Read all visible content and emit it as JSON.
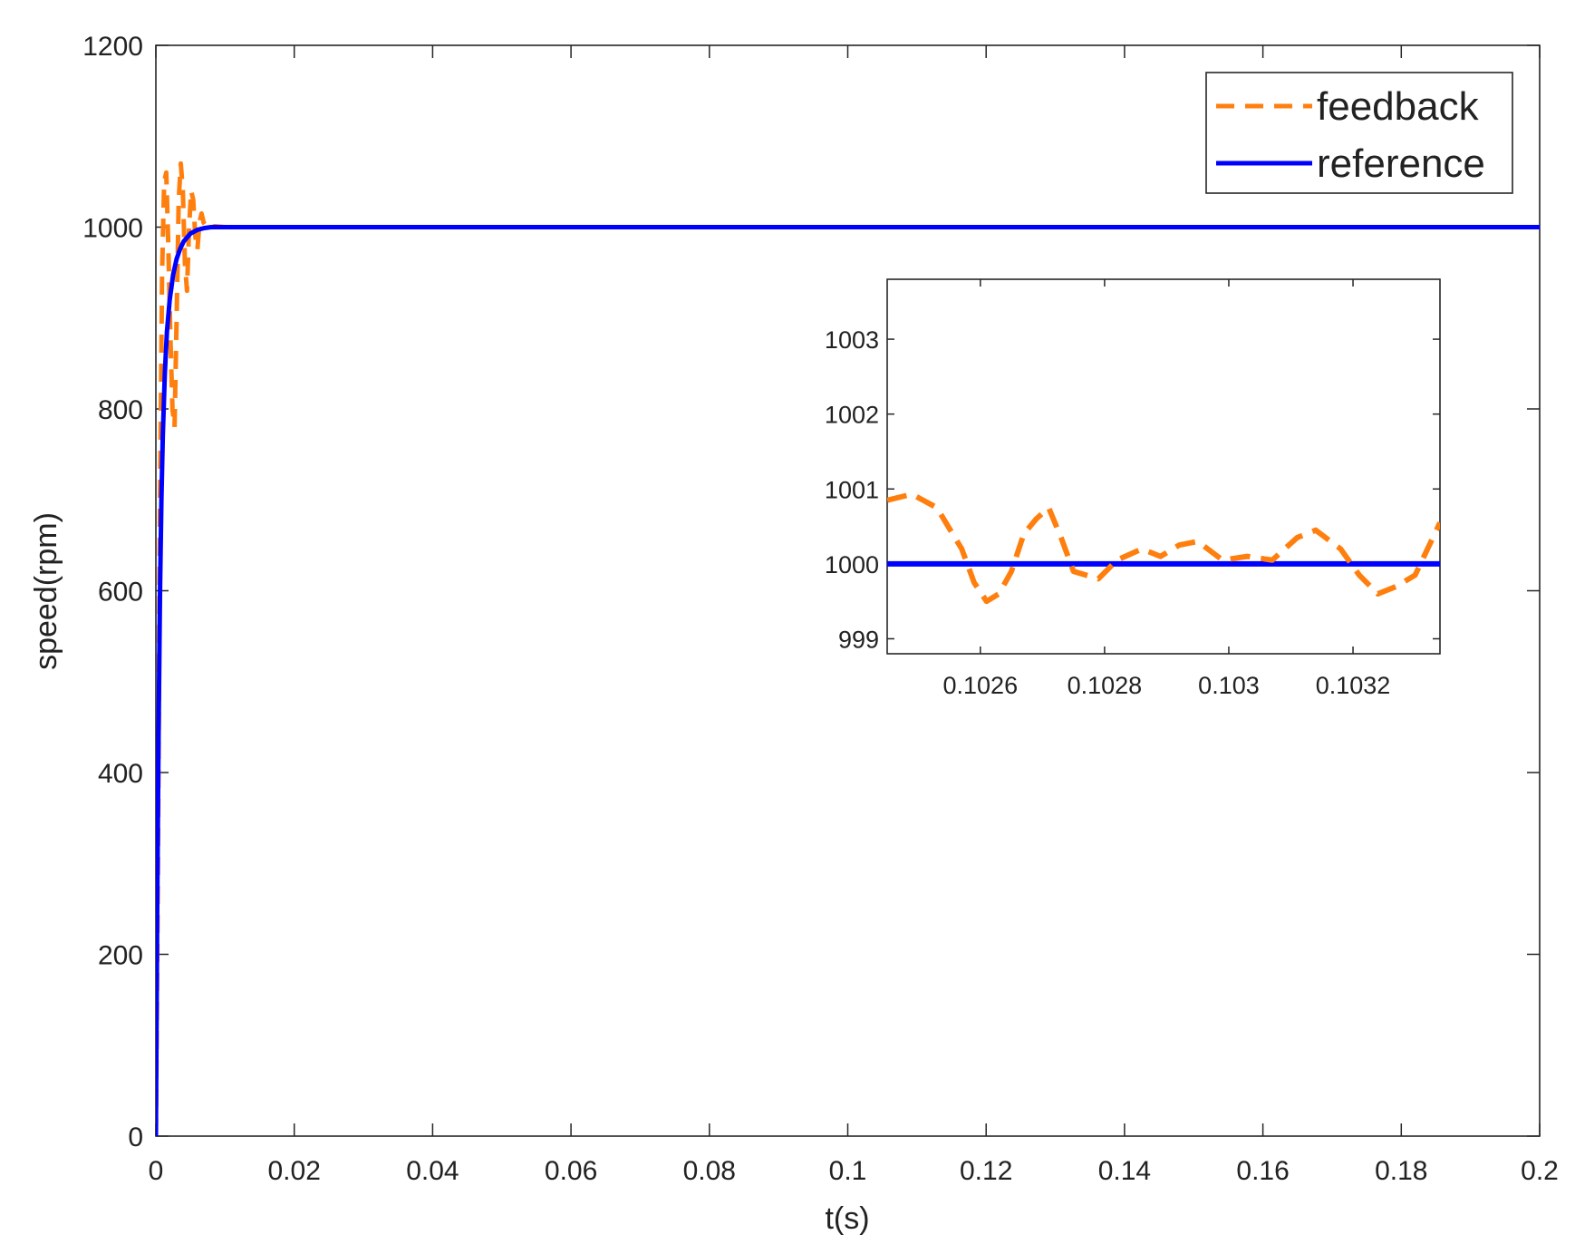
{
  "chart_data": [
    {
      "type": "line",
      "panel": "main",
      "xlabel": "t(s)",
      "ylabel": "speed(rpm)",
      "xlim": [
        0,
        0.2
      ],
      "ylim": [
        0,
        1200
      ],
      "xticks": [
        0,
        0.02,
        0.04,
        0.06,
        0.08,
        0.1,
        0.12,
        0.14,
        0.16,
        0.18,
        0.2
      ],
      "xtick_labels": [
        "0",
        "0.02",
        "0.04",
        "0.06",
        "0.08",
        "0.1",
        "0.12",
        "0.14",
        "0.16",
        "0.18",
        "0.2"
      ],
      "yticks": [
        0,
        200,
        400,
        600,
        800,
        1000,
        1200
      ],
      "ytick_labels": [
        "0",
        "200",
        "400",
        "600",
        "800",
        "1000",
        "1200"
      ],
      "grid": false,
      "legend_position": "top-right",
      "series": [
        {
          "name": "feedback",
          "style": "dashed",
          "color": "#FF7F0E",
          "x": [
            0,
            0.0003,
            0.0006,
            0.0009,
            0.0012,
            0.0015,
            0.0018,
            0.0021,
            0.0024,
            0.0027,
            0.003,
            0.0033,
            0.0036,
            0.0039,
            0.0042,
            0.0045,
            0.0048,
            0.0051,
            0.0054,
            0.0057,
            0.006,
            0.0063,
            0.0066,
            0.0069,
            0.0075,
            0.0085,
            0.01,
            0.05,
            0.1,
            0.15,
            0.2
          ],
          "y": [
            0,
            300,
            700,
            950,
            1050,
            1060,
            980,
            880,
            800,
            780,
            900,
            1030,
            1070,
            1040,
            960,
            930,
            1000,
            1040,
            1030,
            990,
            975,
            1005,
            1015,
            1005,
            998,
            1001,
            1000,
            1000,
            1000,
            1000,
            1000
          ]
        },
        {
          "name": "reference",
          "style": "solid",
          "color": "#0000FF",
          "x": [
            0,
            0.0002,
            0.0004,
            0.0006,
            0.0008,
            0.001,
            0.0013,
            0.0016,
            0.002,
            0.0025,
            0.003,
            0.0035,
            0.004,
            0.005,
            0.006,
            0.007,
            0.008,
            0.01,
            0.05,
            0.1,
            0.15,
            0.2
          ],
          "y": [
            0,
            260,
            450,
            600,
            700,
            770,
            840,
            885,
            920,
            948,
            965,
            976,
            984,
            993,
            997,
            999,
            1000,
            1000,
            1000,
            1000,
            1000,
            1000
          ]
        }
      ]
    },
    {
      "type": "line",
      "panel": "inset",
      "xlim": [
        0.10245,
        0.10334
      ],
      "ylim": [
        998.8,
        1003.8
      ],
      "xticks": [
        0.1026,
        0.1028,
        0.103,
        0.1032
      ],
      "xtick_labels": [
        "0.1026",
        "0.1028",
        "0.103",
        "0.1032"
      ],
      "yticks": [
        999,
        1000,
        1001,
        1002,
        1003
      ],
      "ytick_labels": [
        "999",
        "1000",
        "1001",
        "1002",
        "1003"
      ],
      "series": [
        {
          "name": "feedback",
          "style": "dashed",
          "color": "#FF7F0E",
          "x": [
            0.10245,
            0.10249,
            0.10253,
            0.10257,
            0.10259,
            0.10261,
            0.10263,
            0.10265,
            0.10267,
            0.10269,
            0.10271,
            0.10273,
            0.10275,
            0.10277,
            0.10279,
            0.10282,
            0.10286,
            0.10289,
            0.10292,
            0.10295,
            0.10299,
            0.10303,
            0.10307,
            0.10311,
            0.10314,
            0.10318,
            0.10321,
            0.10324,
            0.10327,
            0.1033,
            0.10334
          ],
          "y": [
            1000.85,
            1000.93,
            1000.75,
            1000.2,
            999.75,
            999.5,
            999.6,
            999.9,
            1000.4,
            1000.6,
            1000.75,
            1000.35,
            999.9,
            999.85,
            999.8,
            1000.05,
            1000.2,
            1000.1,
            1000.25,
            1000.3,
            1000.05,
            1000.1,
            1000.05,
            1000.35,
            1000.45,
            1000.2,
            999.85,
            999.6,
            999.7,
            999.85,
            1000.55
          ]
        },
        {
          "name": "reference",
          "style": "solid",
          "color": "#0000FF",
          "x": [
            0.10245,
            0.10334
          ],
          "y": [
            1000,
            1000
          ]
        }
      ]
    }
  ]
}
